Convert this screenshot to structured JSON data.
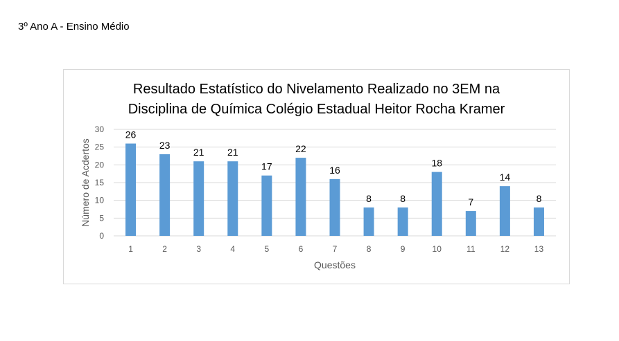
{
  "page": {
    "heading": "3º Ano A - Ensino Médio"
  },
  "chart_data": {
    "type": "bar",
    "title_line1": "Resultado Estatístico do Nivelamento Realizado no 3EM na",
    "title_line2": "Disciplina de Química Colégio Estadual Heitor Rocha Kramer",
    "xlabel": "Questões",
    "ylabel": "Número de Acdertos",
    "categories": [
      "1",
      "2",
      "3",
      "4",
      "5",
      "6",
      "7",
      "8",
      "9",
      "10",
      "11",
      "12",
      "13"
    ],
    "values": [
      26,
      23,
      21,
      21,
      17,
      22,
      16,
      8,
      8,
      18,
      7,
      14,
      8
    ],
    "ylim": [
      0,
      30
    ],
    "yticks": [
      0,
      5,
      10,
      15,
      20,
      25,
      30
    ],
    "grid": true,
    "legend": "none",
    "bar_color": "#5b9bd5",
    "grid_color": "#d9d9d9"
  }
}
